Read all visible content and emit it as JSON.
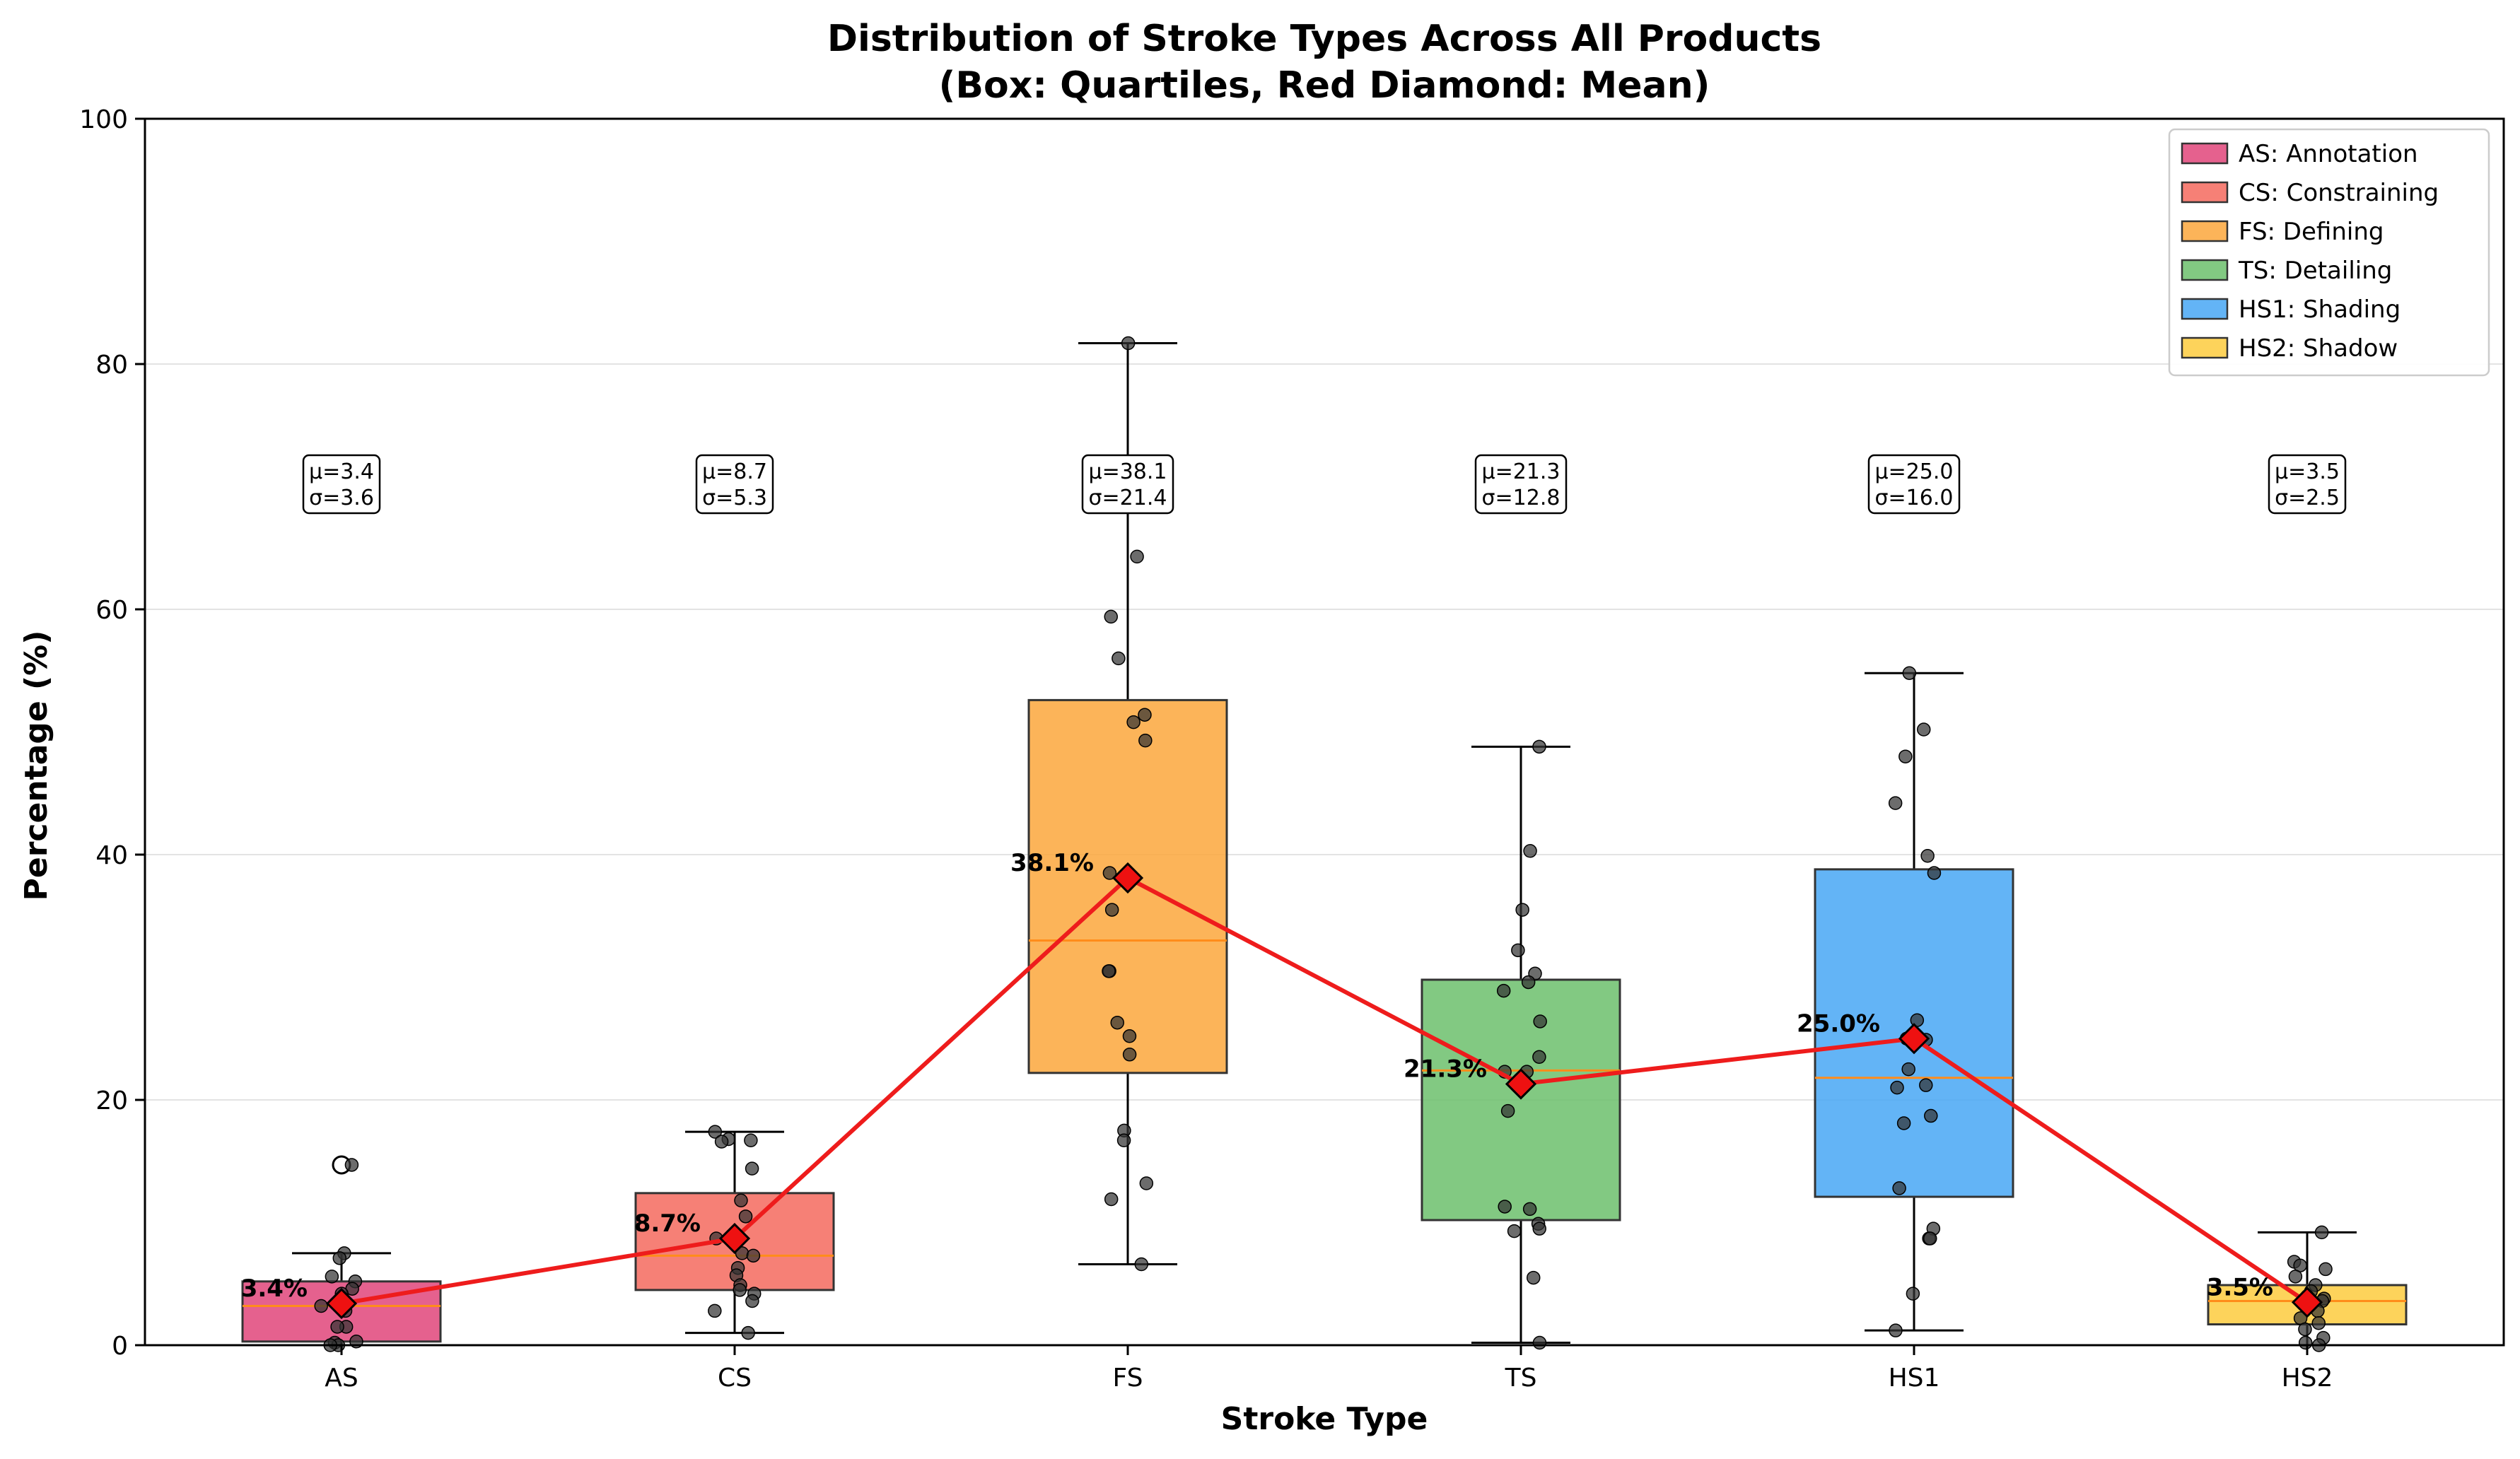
{
  "chart_data": {
    "type": "box",
    "title_line1": "Distribution of Stroke Types Across All Products",
    "title_line2": "(Box: Quartiles, Red Diamond: Mean)",
    "xlabel": "Stroke Type",
    "ylabel": "Percentage (%)",
    "ylim": [
      0,
      100
    ],
    "yticks": [
      0,
      20,
      40,
      60,
      80,
      100
    ],
    "grid": "y",
    "legend_position": "top-right",
    "mean_line_color": "#ee1c1c",
    "mean_marker_color": "#ee1111",
    "categories": [
      {
        "key": "AS",
        "legend": "AS: Annotation",
        "color": "#e0457a",
        "q1": 0.3,
        "median": 3.2,
        "q3": 5.2,
        "whisker_low": 0.0,
        "whisker_high": 7.5,
        "mean": 3.4,
        "mean_label": "3.4%",
        "stat_mu": "μ=3.4",
        "stat_sigma": "σ=3.6",
        "outliers": [
          14.7
        ],
        "points": [
          14.7,
          7.5,
          7.1,
          5.6,
          5.2,
          4.6,
          4.2,
          3.8,
          3.5,
          3.2,
          2.8,
          1.5,
          1.5,
          0.3,
          0.2,
          0.0,
          0.0
        ]
      },
      {
        "key": "CS",
        "legend": "CS: Constraining",
        "color": "#f46a5e",
        "q1": 4.5,
        "median": 7.3,
        "q3": 12.4,
        "whisker_low": 1.0,
        "whisker_high": 17.4,
        "mean": 8.7,
        "mean_label": "8.7%",
        "stat_mu": "μ=8.7",
        "stat_sigma": "σ=5.3",
        "outliers": [],
        "points": [
          17.4,
          16.8,
          16.7,
          16.6,
          14.4,
          11.8,
          10.5,
          8.7,
          7.5,
          7.3,
          6.3,
          5.7,
          4.9,
          4.5,
          4.2,
          3.6,
          2.8,
          1.0
        ]
      },
      {
        "key": "FS",
        "legend": "FS: Defining",
        "color": "#fba73c",
        "q1": 22.2,
        "median": 33.0,
        "q3": 52.6,
        "whisker_low": 6.6,
        "whisker_high": 81.7,
        "mean": 38.1,
        "mean_label": "38.1%",
        "stat_mu": "μ=38.1",
        "stat_sigma": "σ=21.4",
        "outliers": [],
        "points": [
          81.7,
          69.2,
          64.3,
          59.4,
          56.0,
          51.4,
          50.8,
          49.3,
          38.5,
          35.5,
          30.5,
          30.5,
          26.3,
          25.2,
          23.7,
          17.5,
          16.7,
          13.2,
          11.9,
          6.6
        ]
      },
      {
        "key": "TS",
        "legend": "TS: Detailing",
        "color": "#6cbf6c",
        "q1": 10.2,
        "median": 22.4,
        "q3": 29.8,
        "whisker_low": 0.2,
        "whisker_high": 48.8,
        "mean": 21.3,
        "mean_label": "21.3%",
        "stat_mu": "μ=21.3",
        "stat_sigma": "σ=12.8",
        "outliers": [],
        "points": [
          48.8,
          40.3,
          35.5,
          32.2,
          30.3,
          29.6,
          28.9,
          26.4,
          23.5,
          22.3,
          22.3,
          19.1,
          11.3,
          11.1,
          9.9,
          9.5,
          9.3,
          5.5,
          0.2
        ]
      },
      {
        "key": "HS1",
        "legend": "HS1: Shading",
        "color": "#48a7f4",
        "q1": 12.1,
        "median": 21.8,
        "q3": 38.8,
        "whisker_low": 1.2,
        "whisker_high": 54.8,
        "mean": 25.0,
        "mean_label": "25.0%",
        "stat_mu": "μ=25.0",
        "stat_sigma": "σ=16.0",
        "outliers": [],
        "points": [
          54.8,
          50.2,
          48.0,
          44.2,
          39.9,
          38.5,
          26.5,
          25.0,
          24.9,
          22.5,
          21.2,
          21.0,
          18.7,
          18.1,
          12.8,
          9.5,
          8.7,
          8.7,
          4.2,
          1.2
        ]
      },
      {
        "key": "HS2",
        "legend": "HS2: Shadow",
        "color": "#fdcb3e",
        "q1": 1.7,
        "median": 3.6,
        "q3": 4.9,
        "whisker_low": 0.0,
        "whisker_high": 9.2,
        "mean": 3.5,
        "mean_label": "3.5%",
        "stat_mu": "μ=3.5",
        "stat_sigma": "σ=2.5",
        "outliers": [],
        "points": [
          9.2,
          6.8,
          6.5,
          6.2,
          5.6,
          4.9,
          4.4,
          4.0,
          3.8,
          3.6,
          3.4,
          2.8,
          2.2,
          1.8,
          1.3,
          0.6,
          0.2,
          0.0
        ]
      }
    ]
  }
}
